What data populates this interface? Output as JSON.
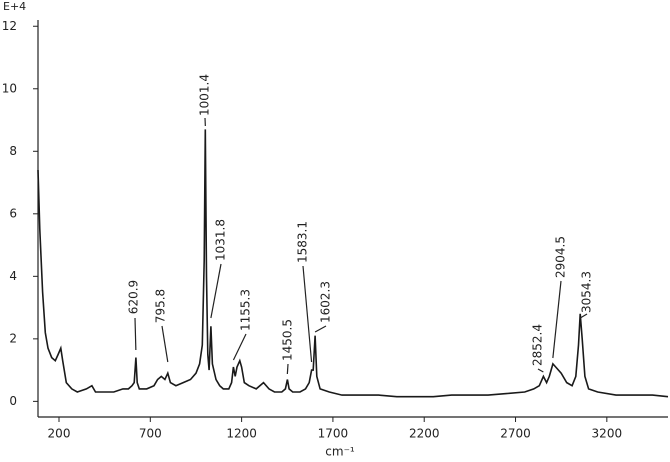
{
  "chart_data": {
    "type": "line",
    "y_unit": "E+4",
    "x_label": "cm⁻¹",
    "x": [
      85,
      95,
      110,
      125,
      140,
      160,
      180,
      195,
      210,
      220,
      240,
      270,
      300,
      350,
      380,
      400,
      450,
      500,
      550,
      580,
      600,
      612,
      620.9,
      628,
      640,
      680,
      720,
      740,
      760,
      780,
      795.8,
      810,
      840,
      880,
      920,
      950,
      970,
      985,
      995,
      1001.4,
      1008,
      1015,
      1022,
      1031.8,
      1040,
      1060,
      1080,
      1100,
      1130,
      1145,
      1155.3,
      1165,
      1175,
      1190,
      1200,
      1215,
      1240,
      1280,
      1320,
      1350,
      1380,
      1420,
      1440,
      1450.5,
      1460,
      1480,
      1520,
      1550,
      1570,
      1583.1,
      1592,
      1602.3,
      1612,
      1630,
      1680,
      1750,
      1850,
      1950,
      2050,
      2150,
      2250,
      2350,
      2450,
      2550,
      2650,
      2750,
      2800,
      2830,
      2852.4,
      2870,
      2885,
      2895,
      2904.5,
      2920,
      2950,
      2980,
      3010,
      3030,
      3045,
      3054.3,
      3065,
      3080,
      3100,
      3150,
      3250,
      3350,
      3450,
      3535
    ],
    "series": [
      {
        "color": "#1a1a1a",
        "values": [
          7.4,
          5.5,
          3.5,
          2.2,
          1.7,
          1.4,
          1.3,
          1.5,
          1.7,
          1.3,
          0.6,
          0.4,
          0.3,
          0.4,
          0.5,
          0.3,
          0.3,
          0.3,
          0.4,
          0.4,
          0.5,
          0.6,
          1.4,
          0.6,
          0.4,
          0.4,
          0.5,
          0.7,
          0.8,
          0.7,
          0.9,
          0.6,
          0.5,
          0.6,
          0.7,
          0.9,
          1.2,
          1.8,
          4.5,
          8.7,
          4.0,
          1.5,
          1.0,
          2.4,
          1.2,
          0.7,
          0.5,
          0.4,
          0.4,
          0.6,
          1.1,
          0.8,
          1.1,
          1.3,
          1.1,
          0.6,
          0.5,
          0.4,
          0.6,
          0.4,
          0.3,
          0.3,
          0.4,
          0.7,
          0.4,
          0.3,
          0.3,
          0.4,
          0.6,
          1.0,
          1.0,
          2.1,
          0.8,
          0.4,
          0.3,
          0.2,
          0.2,
          0.2,
          0.15,
          0.15,
          0.15,
          0.2,
          0.2,
          0.2,
          0.25,
          0.3,
          0.4,
          0.5,
          0.8,
          0.6,
          0.8,
          1.0,
          1.2,
          1.1,
          0.9,
          0.6,
          0.5,
          0.8,
          1.8,
          2.8,
          2.0,
          0.8,
          0.4,
          0.3,
          0.2,
          0.2,
          0.2,
          0.15
        ]
      }
    ],
    "annotations": [
      {
        "x": 620.9,
        "text": "620.9"
      },
      {
        "x": 795.8,
        "text": "795.8"
      },
      {
        "x": 1001.4,
        "text": "1001.4"
      },
      {
        "x": 1031.8,
        "text": "1031.8"
      },
      {
        "x": 1155.3,
        "text": "1155.3"
      },
      {
        "x": 1450.5,
        "text": "1450.5"
      },
      {
        "x": 1583.1,
        "text": "1583.1"
      },
      {
        "x": 1602.3,
        "text": "1602.3"
      },
      {
        "x": 2852.4,
        "text": "2852.4"
      },
      {
        "x": 2904.5,
        "text": "2904.5"
      },
      {
        "x": 3054.3,
        "text": "3054.3"
      }
    ],
    "xlim": [
      85,
      3535
    ],
    "ylim": [
      -0.5,
      12.2
    ],
    "xticks": [
      200,
      700,
      1200,
      1700,
      2200,
      2700,
      3200
    ],
    "yticks": [
      0,
      2,
      4,
      6,
      8,
      10,
      12
    ]
  }
}
